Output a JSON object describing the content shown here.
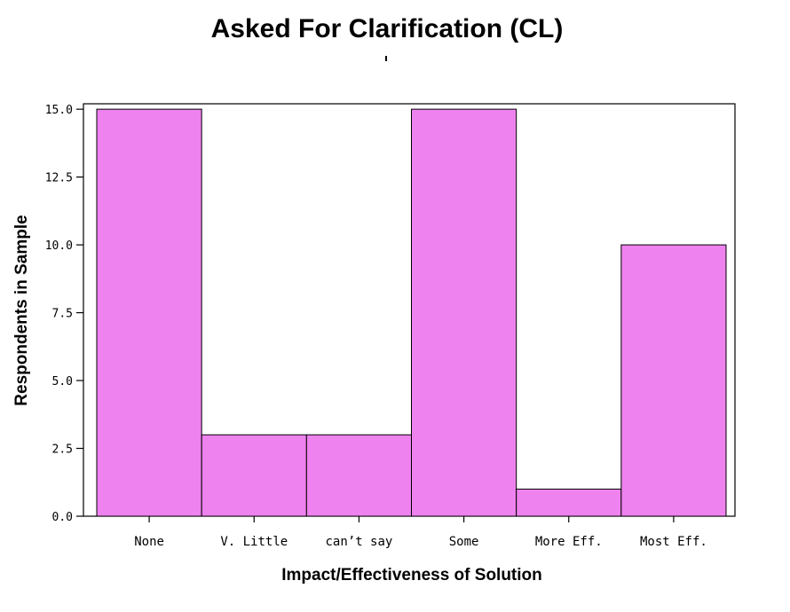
{
  "chart_data": {
    "type": "bar",
    "title": "Asked For Clarification (CL)",
    "xlabel": "Impact/Effectiveness of Solution",
    "ylabel": "Respondents in Sample",
    "categories": [
      "None",
      "V. Little",
      "can’t say",
      "Some",
      "More Eff.",
      "Most Eff."
    ],
    "values": [
      15,
      3,
      3,
      15,
      1,
      10
    ],
    "ylim": [
      0,
      15.2
    ],
    "yticks": [
      0,
      2.5,
      5,
      7.5,
      10,
      12.5,
      15
    ],
    "ytick_labels": [
      "0.0",
      "2.5",
      "5.0",
      "7.5",
      "10.0",
      "12.5",
      "15.0"
    ],
    "grid": false,
    "bar_color": "#ee82ee",
    "edge_color": "#000000"
  }
}
